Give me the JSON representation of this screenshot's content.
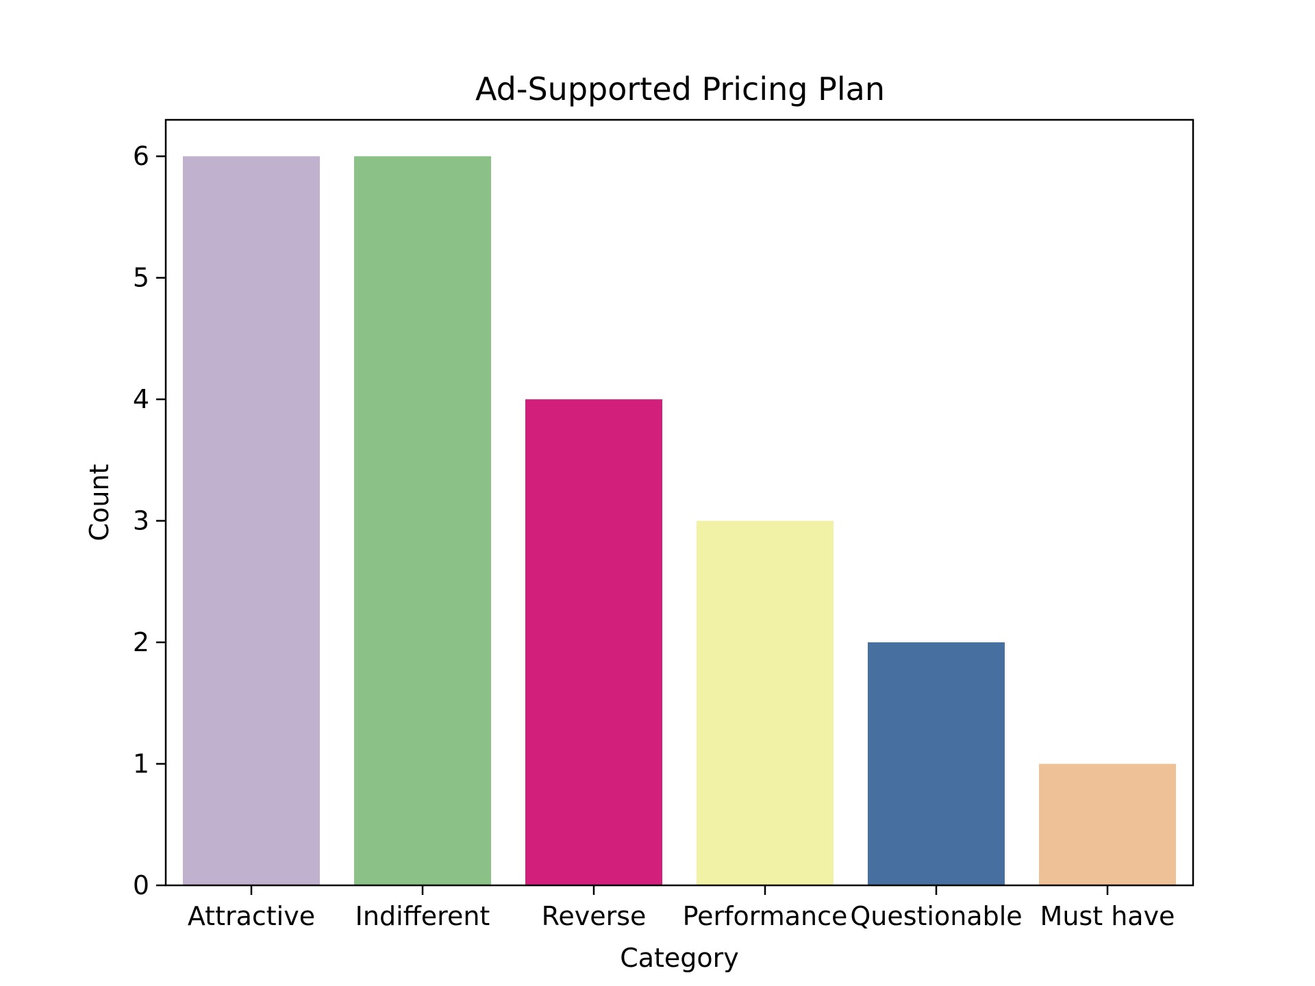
{
  "chart_data": {
    "type": "bar",
    "title": "Ad-Supported Pricing Plan",
    "xlabel": "Category",
    "ylabel": "Count",
    "categories": [
      "Attractive",
      "Indifferent",
      "Reverse",
      "Performance",
      "Questionable",
      "Must have"
    ],
    "values": [
      6,
      6,
      4,
      3,
      2,
      1
    ],
    "colors": [
      "#c0b1cf",
      "#8bc087",
      "#d11f7b",
      "#f1f2a6",
      "#476fa0",
      "#eec196"
    ],
    "ylim": [
      0,
      6.3
    ],
    "yticks": [
      0,
      1,
      2,
      3,
      4,
      5,
      6
    ],
    "grid": false
  }
}
